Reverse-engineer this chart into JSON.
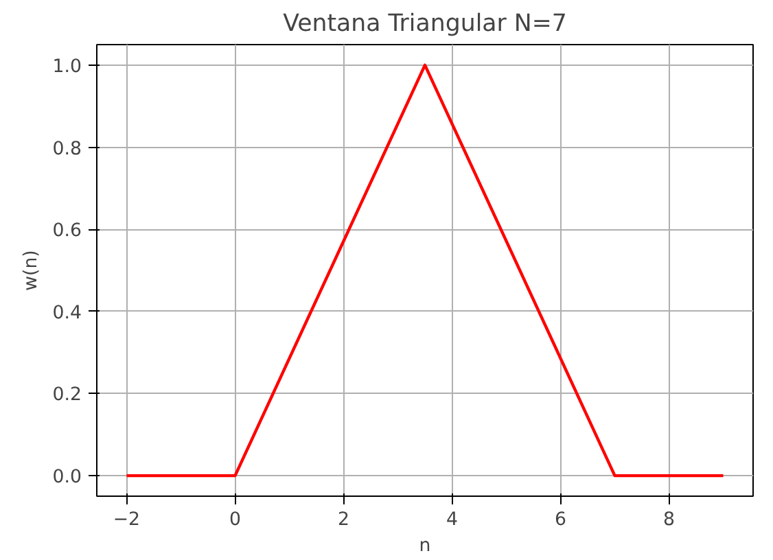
{
  "chart_data": {
    "type": "line",
    "title": "Ventana Triangular N=7",
    "xlabel": "n",
    "ylabel": "w(n)",
    "x": [
      -2,
      0,
      3.5,
      7,
      9
    ],
    "series": [
      {
        "color": "#ff0000",
        "values": [
          0,
          0,
          1,
          0,
          0
        ]
      }
    ],
    "xlim": [
      -2.55,
      9.55
    ],
    "ylim": [
      -0.05,
      1.05
    ],
    "xticks": [
      {
        "value": -2,
        "label": "−2"
      },
      0,
      2,
      4,
      6,
      8
    ],
    "yticks": [
      {
        "value": 0,
        "label": "0.0"
      },
      {
        "value": 0.2,
        "label": "0.2"
      },
      {
        "value": 0.4,
        "label": "0.4"
      },
      {
        "value": 0.6,
        "label": "0.6"
      },
      {
        "value": 0.8,
        "label": "0.8"
      },
      {
        "value": 1,
        "label": "1.0"
      }
    ],
    "grid": true,
    "line_style": "solid",
    "marker": "none"
  }
}
